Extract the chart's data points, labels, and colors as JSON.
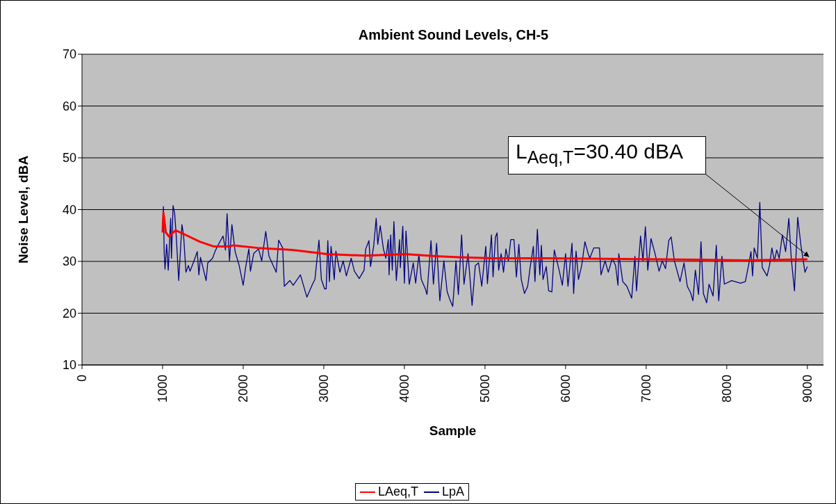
{
  "chart_data": {
    "type": "line",
    "title": "Ambient Sound Levels, CH-5",
    "xlabel": "Sample",
    "ylabel": "Noise Level, dBA",
    "xlim": [
      0,
      9200
    ],
    "xticks": [
      0,
      1000,
      2000,
      3000,
      4000,
      5000,
      6000,
      7000,
      8000,
      9000
    ],
    "ylim": [
      10,
      70
    ],
    "yticks": [
      10,
      20,
      30,
      40,
      50,
      60,
      70
    ],
    "grid": "y",
    "legend": "bottom",
    "annotations": [
      {
        "text": "L$_{Aeq,T}$=30.40 dBA",
        "x": 9000,
        "y": 30.4
      }
    ],
    "series": [
      {
        "name": "LpA",
        "color": "#000080",
        "x": [
          1000,
          1010,
          1020,
          1030,
          1050,
          1070,
          1100,
          1110,
          1130,
          1150,
          1170,
          1200,
          1240,
          1260,
          1290,
          1320,
          1340,
          1390,
          1430,
          1450,
          1470,
          1540,
          1560,
          1620,
          1650,
          1680,
          1750,
          1780,
          1800,
          1830,
          1860,
          1900,
          1950,
          2000,
          2030,
          2070,
          2090,
          2130,
          2190,
          2230,
          2280,
          2320,
          2410,
          2440,
          2490,
          2510,
          2580,
          2620,
          2710,
          2790,
          2860,
          2890,
          2940,
          2970,
          3010,
          3030,
          3050,
          3070,
          3090,
          3130,
          3150,
          3200,
          3240,
          3280,
          3340,
          3380,
          3440,
          3500,
          3520,
          3560,
          3580,
          3620,
          3650,
          3670,
          3700,
          3740,
          3770,
          3800,
          3810,
          3830,
          3850,
          3870,
          3900,
          3940,
          3950,
          3980,
          4000,
          4020,
          4060,
          4110,
          4140,
          4180,
          4210,
          4260,
          4280,
          4330,
          4360,
          4400,
          4440,
          4490,
          4530,
          4560,
          4600,
          4640,
          4670,
          4710,
          4740,
          4790,
          4840,
          4880,
          4920,
          4960,
          5010,
          5030,
          5080,
          5100,
          5130,
          5150,
          5170,
          5200,
          5230,
          5260,
          5290,
          5320,
          5360,
          5390,
          5420,
          5450,
          5490,
          5530,
          5560,
          5600,
          5620,
          5650,
          5680,
          5700,
          5720,
          5760,
          5790,
          5830,
          5860,
          5920,
          5960,
          6000,
          6030,
          6080,
          6100,
          6130,
          6160,
          6200,
          6240,
          6280,
          6300,
          6350,
          6420,
          6440,
          6490,
          6530,
          6580,
          6620,
          6650,
          6660,
          6710,
          6760,
          6820,
          6860,
          6880,
          6930,
          6960,
          6990,
          7020,
          7060,
          7110,
          7160,
          7200,
          7240,
          7280,
          7310,
          7350,
          7420,
          7470,
          7510,
          7550,
          7580,
          7610,
          7650,
          7680,
          7710,
          7750,
          7780,
          7830,
          7870,
          7900,
          7940,
          7970,
          8060,
          8170,
          8230,
          8270,
          8300,
          8320,
          8340,
          8380,
          8410,
          8440,
          8500,
          8530,
          8560,
          8590,
          8620,
          8650,
          8690,
          8730,
          8770,
          8800,
          8840,
          8880,
          8920,
          8970,
          9000
        ],
        "values": [
          35.6,
          40.6,
          31.5,
          28.5,
          33.3,
          28.3,
          38.3,
          30.6,
          40.8,
          39.2,
          34.7,
          26.3,
          37.1,
          35.1,
          27.9,
          29.2,
          28.1,
          30.1,
          31.9,
          27.4,
          30.8,
          26.3,
          29.7,
          30.6,
          31.9,
          32.9,
          34.9,
          32.2,
          39.2,
          30.1,
          37.1,
          31.9,
          29.2,
          25.4,
          28.8,
          32.4,
          28.1,
          31.5,
          32.4,
          30.1,
          35.8,
          31.0,
          27.9,
          34.1,
          32.6,
          25.2,
          26.3,
          25.4,
          27.4,
          23.1,
          25.6,
          26.5,
          34.1,
          26.5,
          24.7,
          24.7,
          34.0,
          26.1,
          32.9,
          26.5,
          32.0,
          27.9,
          30.1,
          27.2,
          30.6,
          28.1,
          26.7,
          28.3,
          32.4,
          34.0,
          29.0,
          33.1,
          38.3,
          33.3,
          36.9,
          32.4,
          30.6,
          34.2,
          27.4,
          35.1,
          28.3,
          37.7,
          26.3,
          34.2,
          28.8,
          36.8,
          25.8,
          35.9,
          25.6,
          29.7,
          25.8,
          31.3,
          26.5,
          24.7,
          23.6,
          34.0,
          25.6,
          33.5,
          22.4,
          30.1,
          24.2,
          22.8,
          21.3,
          30.1,
          23.6,
          35.1,
          25.6,
          31.5,
          21.5,
          29.2,
          29.7,
          25.2,
          32.9,
          25.7,
          35.1,
          27.0,
          34.7,
          35.5,
          28.3,
          31.5,
          27.9,
          32.4,
          30.1,
          34.2,
          34.2,
          27.0,
          33.3,
          26.5,
          23.8,
          25.2,
          28.8,
          32.9,
          26.1,
          36.2,
          27.4,
          33.1,
          26.5,
          29.0,
          24.3,
          24.1,
          32.2,
          28.3,
          25.4,
          31.5,
          25.2,
          33.5,
          23.8,
          32.0,
          26.5,
          29.2,
          33.8,
          31.5,
          30.6,
          32.6,
          32.6,
          27.4,
          30.1,
          27.9,
          30.6,
          29.2,
          25.4,
          31.5,
          26.1,
          25.2,
          22.9,
          31.0,
          24.3,
          34.9,
          30.1,
          36.7,
          28.3,
          34.4,
          31.5,
          28.1,
          30.1,
          28.6,
          34.0,
          34.7,
          30.1,
          26.1,
          29.7,
          25.2,
          24.0,
          22.4,
          28.3,
          23.6,
          33.8,
          23.8,
          22.0,
          25.6,
          23.3,
          33.1,
          22.4,
          31.0,
          25.6,
          26.3,
          25.8,
          26.1,
          29.2,
          31.9,
          27.2,
          32.6,
          30.6,
          41.4,
          28.8,
          27.2,
          29.2,
          32.6,
          30.1,
          32.2,
          30.6,
          35.1,
          31.9,
          38.3,
          30.6,
          24.3,
          38.5,
          33.1,
          27.9,
          29.0
        ]
      },
      {
        "name": "LAeq,T",
        "color": "#ff0000",
        "x": [
          1000,
          1010,
          1040,
          1080,
          1160,
          1260,
          1460,
          1630,
          1830,
          1880,
          2180,
          2610,
          3040,
          3520,
          4010,
          4390,
          4670,
          5100,
          5730,
          6450,
          7170,
          8230,
          9000
        ],
        "values": [
          35.6,
          39.4,
          35.6,
          34.8,
          36.0,
          35.3,
          33.8,
          32.9,
          32.9,
          33.1,
          32.6,
          32.2,
          31.4,
          31.1,
          31.4,
          31.0,
          30.8,
          30.6,
          30.6,
          30.5,
          30.4,
          30.2,
          30.4
        ]
      }
    ]
  }
}
